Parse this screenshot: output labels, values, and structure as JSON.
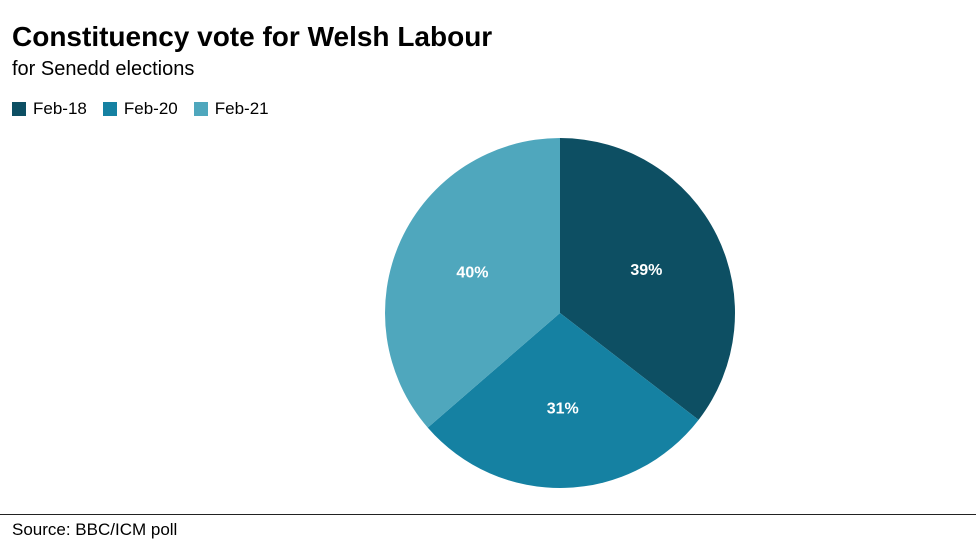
{
  "chart_data": {
    "type": "pie",
    "title": "Constituency vote for Welsh Labour",
    "subtitle": "for Senedd elections",
    "categories": [
      "Feb-18",
      "Feb-20",
      "Feb-21"
    ],
    "values": [
      39,
      31,
      40
    ],
    "value_labels": [
      "39%",
      "31%",
      "40%"
    ],
    "colors": [
      "#0d4f63",
      "#1581a2",
      "#4fa7bd"
    ],
    "legend_position": "top-left",
    "start_angle": "12 o'clock",
    "direction": "clockwise",
    "source": "Source: BBC/ICM poll"
  }
}
